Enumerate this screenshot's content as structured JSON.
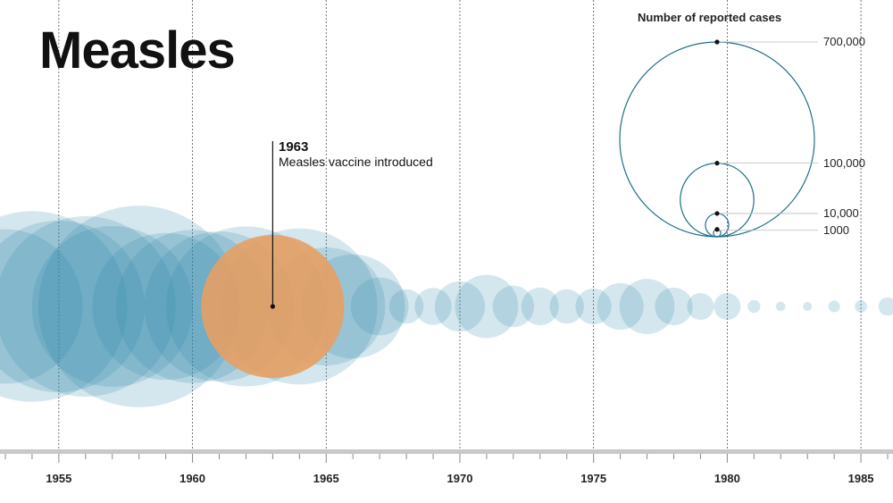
{
  "chart_data": {
    "type": "bubble",
    "title": "Measles",
    "x": [
      1953,
      1954,
      1955,
      1956,
      1957,
      1958,
      1959,
      1960,
      1961,
      1962,
      1963,
      1964,
      1965,
      1966,
      1967,
      1968,
      1969,
      1970,
      1971,
      1972,
      1973,
      1974,
      1975,
      1976,
      1977,
      1978,
      1979,
      1980,
      1981,
      1982,
      1983,
      1984,
      1985,
      1986
    ],
    "values": [
      449000,
      683000,
      555000,
      612000,
      486000,
      763000,
      406000,
      441000,
      423000,
      482000,
      385000,
      458000,
      262000,
      204000,
      62700,
      22200,
      25800,
      47400,
      75300,
      32300,
      26700,
      22100,
      24400,
      41100,
      57300,
      26900,
      13600,
      13500,
      3100,
      1700,
      1500,
      2600,
      2800,
      6300
    ],
    "highlight": {
      "year": 1963,
      "label_year": "1963",
      "label_text": "Measles vaccine introduced",
      "color": "#E6A064"
    },
    "bubble_color": "#2E86AB",
    "xlim": [
      1952.8,
      1986.2
    ],
    "xticks": [
      "1955",
      "1960",
      "1965",
      "1970",
      "1975",
      "1980",
      "1985"
    ],
    "legend": {
      "title": "Number of reported cases",
      "entries": [
        {
          "value": 700000,
          "label": "700,000"
        },
        {
          "value": 100000,
          "label": "100,000"
        },
        {
          "value": 10000,
          "label": "10,000"
        },
        {
          "value": 1000,
          "label": "1000"
        }
      ],
      "stroke_color": "#1F6F8B"
    }
  }
}
